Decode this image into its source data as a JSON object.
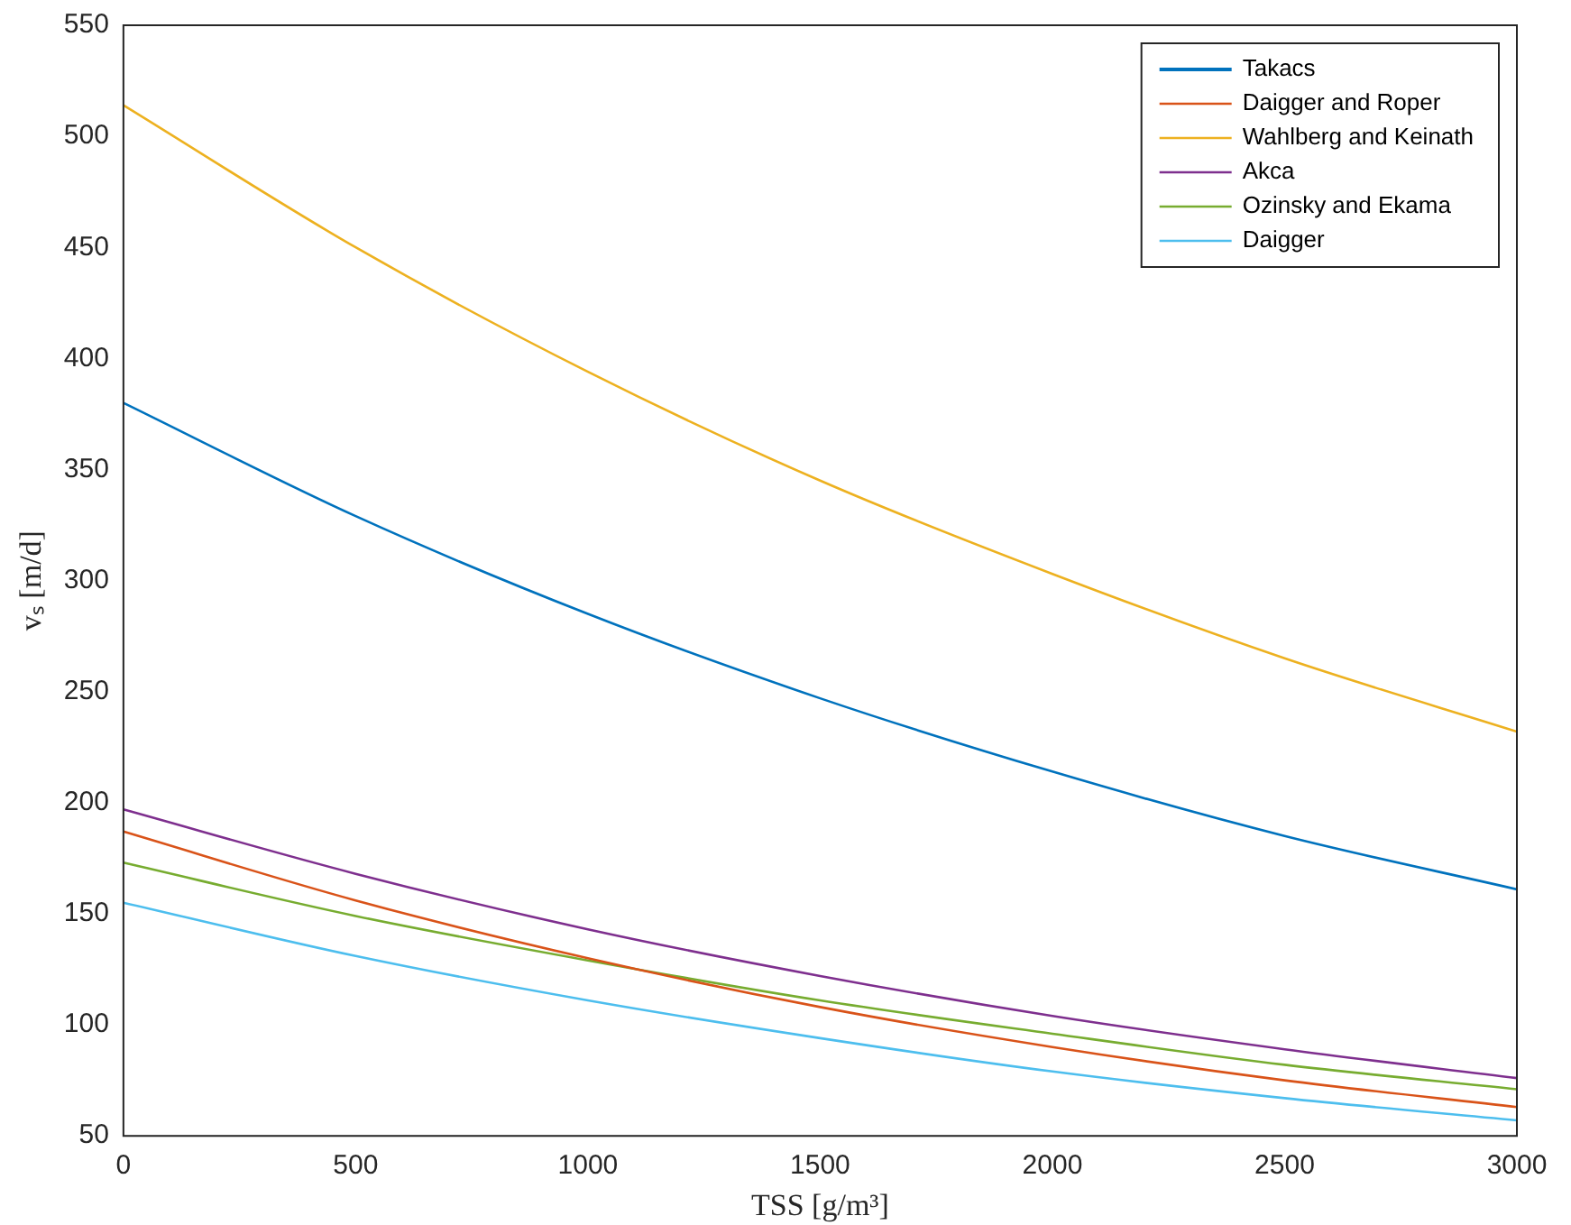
{
  "chart_data": {
    "type": "line",
    "xlabel": "TSS [g/m³]",
    "ylabel": "vₛ [m/d]",
    "x": [
      0,
      500,
      1000,
      1500,
      2000,
      2500,
      3000
    ],
    "series": [
      {
        "name": "Takacs",
        "color": "#0072bd",
        "values": [
          380,
          329,
          285,
          247,
          214,
          185,
          161
        ]
      },
      {
        "name": "Daigger and Roper",
        "color": "#d95319",
        "values": [
          187,
          156,
          130,
          108,
          90,
          75,
          63
        ]
      },
      {
        "name": "Wahlberg and Keinath",
        "color": "#edb120",
        "values": [
          514,
          450,
          394,
          345,
          303,
          265,
          232
        ]
      },
      {
        "name": "Akca",
        "color": "#7e2f8e",
        "values": [
          197,
          168,
          143,
          122,
          104,
          89,
          76
        ]
      },
      {
        "name": "Ozinsky and Ekama",
        "color": "#77ac30",
        "values": [
          173,
          149,
          129,
          111,
          96,
          82,
          71
        ]
      },
      {
        "name": "Daigger",
        "color": "#4dbeee",
        "values": [
          155,
          131,
          111,
          94,
          79,
          67,
          57
        ]
      }
    ],
    "xlim": [
      0,
      3000
    ],
    "xticks": [
      0,
      500,
      1000,
      1500,
      2000,
      2500,
      3000
    ],
    "ylim": [
      50,
      550
    ],
    "yticks": [
      50,
      100,
      150,
      200,
      250,
      300,
      350,
      400,
      450,
      500,
      550
    ],
    "grid": false,
    "legend": "top right",
    "marker": "none",
    "line_style": "solid"
  }
}
